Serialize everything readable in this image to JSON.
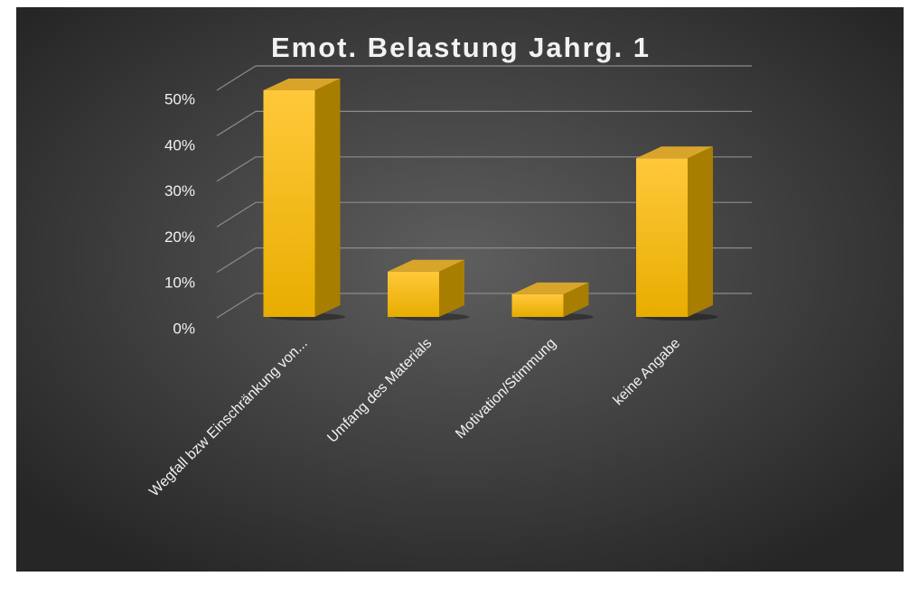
{
  "chart_data": {
    "type": "bar3d",
    "title": "Emot. Belastung Jahrg. 1",
    "categories": [
      "Wegfall bzw Einschränkung von...",
      "Umfang des Materials",
      "Motivation/Stimmung",
      "keine Angabe"
    ],
    "values": [
      50,
      10,
      5,
      35
    ],
    "color": "#ffc000",
    "ylim": [
      0,
      50
    ],
    "yticks": [
      {
        "value": 0,
        "label": "0%"
      },
      {
        "value": 10,
        "label": "10%"
      },
      {
        "value": 20,
        "label": "20%"
      },
      {
        "value": 30,
        "label": "30%"
      },
      {
        "value": 40,
        "label": "40%"
      },
      {
        "value": 50,
        "label": "50%"
      }
    ],
    "grid": true
  }
}
